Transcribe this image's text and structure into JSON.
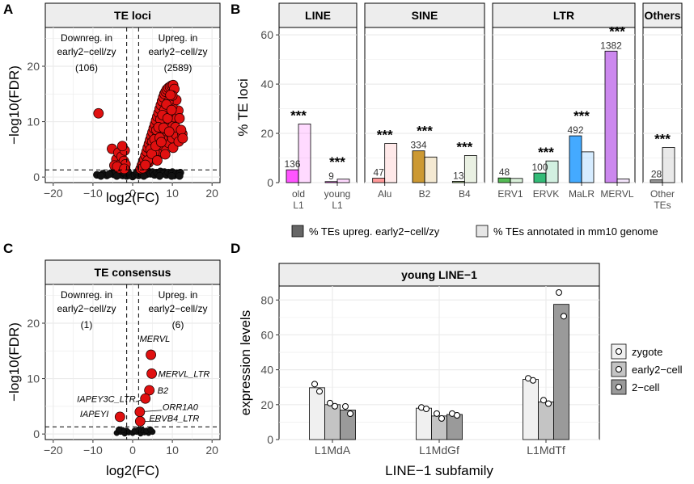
{
  "panels": {
    "A": "A",
    "B": "B",
    "C": "C",
    "D": "D"
  },
  "chart_data": [
    {
      "id": "A",
      "type": "scatter",
      "title": "TE loci",
      "xlabel": "log2(FC)",
      "ylabel": "−log10(FDR)",
      "xlim": [
        -22,
        22
      ],
      "ylim": [
        -1,
        27
      ],
      "xticks": [
        -20,
        -10,
        0,
        10,
        20
      ],
      "yticks": [
        0,
        10,
        20
      ],
      "xtick_labels": [
        "−20",
        "−10",
        "0",
        "10",
        "20"
      ],
      "ytick_labels": [
        "0",
        "10",
        "20"
      ],
      "vlines": [
        -1.5,
        1.5
      ],
      "hline": 1.3,
      "annotations": {
        "down_l1": "Downreg. in",
        "down_l2": "early2−cell/zy",
        "down_count": "(106)",
        "up_l1": "Upreg. in",
        "up_l2": "early2−cell/zy",
        "up_count": "(2589)"
      },
      "points": [
        [
          -8.6,
          11.5
        ],
        [
          -5.2,
          5.1
        ],
        [
          -4.1,
          3.2
        ],
        [
          -3.6,
          4.4
        ],
        [
          -3.0,
          2.4
        ],
        [
          -2.8,
          3.7
        ],
        [
          -2.4,
          1.8
        ],
        [
          -2.2,
          2.9
        ],
        [
          -2.0,
          4.8
        ],
        [
          -1.9,
          1.7
        ],
        [
          -1.8,
          2.3
        ],
        [
          -3.3,
          1.6
        ],
        [
          -4.6,
          2.1
        ],
        [
          -2.6,
          5.6
        ],
        [
          -3.9,
          1.9
        ],
        [
          -2.1,
          1.5
        ],
        [
          2.0,
          1.5
        ],
        [
          2.3,
          2.1
        ],
        [
          2.6,
          2.6
        ],
        [
          2.9,
          3.2
        ],
        [
          3.2,
          3.9
        ],
        [
          3.5,
          4.6
        ],
        [
          3.8,
          5.3
        ],
        [
          4.1,
          6.0
        ],
        [
          4.4,
          6.7
        ],
        [
          4.7,
          7.4
        ],
        [
          5.0,
          8.1
        ],
        [
          5.3,
          8.8
        ],
        [
          5.6,
          9.5
        ],
        [
          5.9,
          10.2
        ],
        [
          6.2,
          10.9
        ],
        [
          6.5,
          11.6
        ],
        [
          6.8,
          12.3
        ],
        [
          7.1,
          13.0
        ],
        [
          7.4,
          13.7
        ],
        [
          7.7,
          14.4
        ],
        [
          8.0,
          15.0
        ],
        [
          8.3,
          15.4
        ],
        [
          8.6,
          15.8
        ],
        [
          9.0,
          16.1
        ],
        [
          9.4,
          16.3
        ],
        [
          9.8,
          16.5
        ],
        [
          10.2,
          16.6
        ],
        [
          10.5,
          15.9
        ],
        [
          3.0,
          1.8
        ],
        [
          4.0,
          2.6
        ],
        [
          5.0,
          3.4
        ],
        [
          6.0,
          4.0
        ],
        [
          7.0,
          4.7
        ],
        [
          8.0,
          5.5
        ],
        [
          9.0,
          6.2
        ],
        [
          10.0,
          7.0
        ],
        [
          11.0,
          7.6
        ],
        [
          12.5,
          7.8
        ],
        [
          3.5,
          2.4
        ],
        [
          4.5,
          3.3
        ],
        [
          5.5,
          4.5
        ],
        [
          6.5,
          5.8
        ],
        [
          7.5,
          7.0
        ],
        [
          8.5,
          8.3
        ],
        [
          9.5,
          9.6
        ],
        [
          10.5,
          10.8
        ],
        [
          11.5,
          12.0
        ],
        [
          6.0,
          7.2
        ],
        [
          7.0,
          8.6
        ],
        [
          8.0,
          10.0
        ],
        [
          9.0,
          11.4
        ],
        [
          10.0,
          12.8
        ],
        [
          11.0,
          13.9
        ],
        [
          5.0,
          6.4
        ],
        [
          6.0,
          8.5
        ],
        [
          7.0,
          10.4
        ],
        [
          8.0,
          12.1
        ],
        [
          9.0,
          13.6
        ],
        [
          10.0,
          14.7
        ],
        [
          4.5,
          5.0
        ],
        [
          5.5,
          6.8
        ],
        [
          6.5,
          9.0
        ],
        [
          7.5,
          11.2
        ],
        [
          8.5,
          13.1
        ],
        [
          9.5,
          14.8
        ],
        [
          3.8,
          3.0
        ],
        [
          4.8,
          4.2
        ],
        [
          5.8,
          5.6
        ],
        [
          6.8,
          7.1
        ],
        [
          7.8,
          8.9
        ],
        [
          8.8,
          10.6
        ],
        [
          9.8,
          12.1
        ],
        [
          10.8,
          9.0
        ],
        [
          11.8,
          10.6
        ],
        [
          12.2,
          8.5
        ],
        [
          2.5,
          1.6
        ],
        [
          3.2,
          2.2
        ],
        [
          6.2,
          3.0
        ],
        [
          8.2,
          4.1
        ],
        [
          10.2,
          5.3
        ],
        [
          11.6,
          6.4
        ],
        [
          12.6,
          7.0
        ],
        [
          9.2,
          8.2
        ],
        [
          7.2,
          6.3
        ]
      ],
      "bg_points": [
        [
          -9,
          0.4
        ],
        [
          -7.5,
          0.6
        ],
        [
          -6.5,
          0.3
        ],
        [
          -5.5,
          0.7
        ],
        [
          -4.8,
          0.5
        ],
        [
          -4.2,
          0.9
        ],
        [
          -3.5,
          0.4
        ],
        [
          -3.0,
          0.8
        ],
        [
          -2.5,
          0.3
        ],
        [
          -2.0,
          0.6
        ],
        [
          -1.5,
          0.2
        ],
        [
          -1.0,
          0.5
        ],
        [
          -0.5,
          0.3
        ],
        [
          0,
          0.1
        ],
        [
          0.5,
          0.4
        ],
        [
          1.0,
          0.6
        ],
        [
          1.5,
          0.3
        ],
        [
          2.0,
          0.8
        ],
        [
          2.5,
          0.4
        ],
        [
          3.0,
          0.9
        ],
        [
          3.5,
          0.5
        ],
        [
          4.0,
          1.0
        ],
        [
          4.5,
          0.6
        ],
        [
          5.0,
          0.9
        ],
        [
          5.5,
          0.4
        ],
        [
          6.0,
          0.8
        ],
        [
          6.5,
          0.5
        ],
        [
          7.0,
          1.0
        ],
        [
          7.5,
          0.6
        ],
        [
          8.0,
          0.9
        ],
        [
          8.5,
          0.4
        ],
        [
          9.0,
          0.8
        ],
        [
          9.5,
          0.5
        ],
        [
          10.0,
          0.9
        ],
        [
          10.5,
          0.3
        ],
        [
          11.0,
          0.7
        ],
        [
          11.5,
          0.5
        ],
        [
          12.0,
          0.8
        ],
        [
          -8,
          0.2
        ],
        [
          -6,
          0.5
        ],
        [
          -4,
          0.2
        ],
        [
          -2.2,
          0.9
        ],
        [
          -1.2,
          1.0
        ],
        [
          1.2,
          1.0
        ],
        [
          2.8,
          0.2
        ],
        [
          6.8,
          0.2
        ],
        [
          9.8,
          0.2
        ],
        [
          11.8,
          0.2
        ]
      ]
    },
    {
      "id": "B",
      "type": "bar",
      "ylabel": "% TE loci",
      "ylim": [
        0,
        63
      ],
      "yticks": [
        0,
        20,
        40,
        60
      ],
      "facets": [
        "LINE",
        "SINE",
        "LTR",
        "Others"
      ],
      "categories": [
        {
          "label1": "old",
          "label2": "L1",
          "facet": 0,
          "up": 5.2,
          "genome": 23.8,
          "count": "136",
          "stars": "***",
          "color": "#ff55ff"
        },
        {
          "label1": "young",
          "label2": "L1",
          "facet": 0,
          "up": 0.4,
          "genome": 1.4,
          "count": "9",
          "stars": "***",
          "color": "#ff55ff"
        },
        {
          "label1": "Alu",
          "label2": "",
          "facet": 1,
          "up": 1.8,
          "genome": 15.9,
          "count": "47",
          "stars": "***",
          "color": "#ff9999"
        },
        {
          "label1": "B2",
          "label2": "",
          "facet": 1,
          "up": 12.9,
          "genome": 10.4,
          "count": "334",
          "stars": "***",
          "color": "#cc9933"
        },
        {
          "label1": "B4",
          "label2": "",
          "facet": 1,
          "up": 0.5,
          "genome": 11.0,
          "count": "13",
          "stars": "***",
          "color": "#a0c080"
        },
        {
          "label1": "ERV1",
          "label2": "",
          "facet": 2,
          "up": 1.9,
          "genome": 1.7,
          "count": "48",
          "stars": "",
          "color": "#55bb55"
        },
        {
          "label1": "ERVK",
          "label2": "",
          "facet": 2,
          "up": 3.9,
          "genome": 8.8,
          "count": "100",
          "stars": "***",
          "color": "#33bb77"
        },
        {
          "label1": "MaLR",
          "label2": "",
          "facet": 2,
          "up": 19.0,
          "genome": 12.5,
          "count": "492",
          "stars": "***",
          "color": "#44aaff"
        },
        {
          "label1": "MERVL",
          "label2": "",
          "facet": 2,
          "up": 53.4,
          "genome": 1.5,
          "count": "1382",
          "stars": "***",
          "color": "#cc88ee"
        },
        {
          "label1": "Other",
          "label2": "TEs",
          "facet": 3,
          "up": 1.1,
          "genome": 14.3,
          "count": "28",
          "stars": "***",
          "color": "#999999"
        }
      ],
      "legend": [
        "% TEs upreg. early2−cell/zy",
        "% TEs annotated in mm10 genome"
      ]
    },
    {
      "id": "C",
      "type": "scatter",
      "title": "TE consensus",
      "xlabel": "log2(FC)",
      "ylabel": "−log10(FDR)",
      "xlim": [
        -22,
        22
      ],
      "ylim": [
        -1,
        27
      ],
      "xticks": [
        -20,
        -10,
        0,
        10,
        20
      ],
      "yticks": [
        0,
        10,
        20
      ],
      "xtick_labels": [
        "−20",
        "−10",
        "0",
        "10",
        "20"
      ],
      "ytick_labels": [
        "0",
        "10",
        "20"
      ],
      "vlines": [
        -1.5,
        1.5
      ],
      "hline": 1.3,
      "annotations": {
        "down_l1": "Downreg. in",
        "down_l2": "early2−cell/zy",
        "down_count": "(1)",
        "up_l1": "Upreg. in",
        "up_l2": "early2−cell/zy",
        "up_count": "(6)"
      },
      "points": [
        {
          "name": "MERVL",
          "x": 4.6,
          "y": 14.3
        },
        {
          "name": "MERVL_LTR",
          "x": 4.8,
          "y": 10.9
        },
        {
          "name": "B2",
          "x": 4.2,
          "y": 7.9
        },
        {
          "name": "IAPEY3C_LTR",
          "x": 3.2,
          "y": 6.4
        },
        {
          "name": "ORR1A0",
          "x": 1.8,
          "y": 4.0
        },
        {
          "name": "ERVB4_LTR",
          "x": 1.9,
          "y": 2.3
        },
        {
          "name": "IAPEYI",
          "x": -3.2,
          "y": 3.1
        }
      ],
      "bg_points": [
        [
          -4,
          0.2
        ],
        [
          -3,
          0.4
        ],
        [
          -2,
          0.1
        ],
        [
          -1,
          0.3
        ],
        [
          0,
          0.2
        ],
        [
          1,
          0.4
        ],
        [
          2,
          0.1
        ],
        [
          3,
          0.3
        ],
        [
          4,
          0.2
        ],
        [
          5,
          0.4
        ],
        [
          -1.5,
          0.6
        ],
        [
          0.5,
          0.6
        ],
        [
          2.5,
          0.7
        ],
        [
          3.5,
          0.6
        ],
        [
          -2.5,
          0.7
        ],
        [
          1.5,
          0.8
        ],
        [
          4.5,
          0.8
        ],
        [
          -3.5,
          0.8
        ]
      ]
    },
    {
      "id": "D",
      "type": "bar",
      "title": "young LINE−1",
      "xlabel": "LINE−1 subfamily",
      "ylabel": "expression levels",
      "ylim": [
        0,
        88
      ],
      "yticks": [
        0,
        20,
        40,
        60,
        80
      ],
      "categories": [
        "L1MdA",
        "L1MdGf",
        "L1MdTf"
      ],
      "series": [
        {
          "name": "zygote",
          "color": "#f0f0f0",
          "values": [
            29.7,
            18.0,
            34.5
          ],
          "points": [
            [
              31.8,
              27.6
            ],
            [
              18.4,
              17.6
            ],
            [
              35.1,
              33.9
            ]
          ]
        },
        {
          "name": "early2−cell",
          "color": "#c4c4c4",
          "values": [
            20.0,
            13.5,
            21.6
          ],
          "points": [
            [
              20.9,
              19.1
            ],
            [
              14.9,
              12.1
            ],
            [
              22.6,
              20.6
            ]
          ]
        },
        {
          "name": "2−cell",
          "color": "#9a9a9a",
          "values": [
            16.9,
            14.4,
            77.5
          ],
          "points": [
            [
              19.0,
              14.8
            ],
            [
              14.9,
              13.9
            ],
            [
              84.3,
              70.7
            ]
          ]
        }
      ]
    }
  ]
}
